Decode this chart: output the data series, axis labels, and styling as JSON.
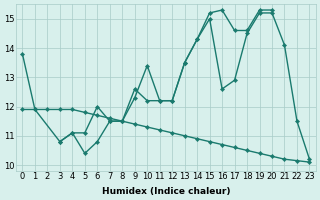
{
  "series": [
    {
      "x": [
        0,
        1,
        3,
        4,
        5,
        6,
        7,
        8,
        9,
        10,
        11,
        12,
        13,
        14,
        15,
        16,
        17,
        18,
        19,
        20,
        21,
        22,
        23
      ],
      "y": [
        13.8,
        11.9,
        10.8,
        11.1,
        10.4,
        10.8,
        11.5,
        11.5,
        12.6,
        12.2,
        12.2,
        12.2,
        13.5,
        14.3,
        15.0,
        12.6,
        12.9,
        14.5,
        15.2,
        15.2,
        14.1,
        11.5,
        10.2
      ]
    },
    {
      "x": [
        3,
        4,
        5,
        6,
        7,
        8,
        9,
        10,
        11,
        12,
        13,
        14,
        15,
        16,
        17,
        18,
        19,
        20
      ],
      "y": [
        10.8,
        11.1,
        11.1,
        12.0,
        11.5,
        11.5,
        12.3,
        13.4,
        12.2,
        12.2,
        13.5,
        14.3,
        15.2,
        15.3,
        14.6,
        14.6,
        15.3,
        15.3
      ]
    },
    {
      "x": [
        0,
        1,
        2,
        3,
        4,
        5,
        6,
        7,
        8,
        9,
        10,
        11,
        12,
        13,
        14,
        15,
        16,
        17,
        18,
        19,
        20,
        21,
        22,
        23
      ],
      "y": [
        11.9,
        11.9,
        11.9,
        11.9,
        11.9,
        11.8,
        11.7,
        11.6,
        11.5,
        11.4,
        11.3,
        11.2,
        11.1,
        11.0,
        10.9,
        10.8,
        10.7,
        10.6,
        10.5,
        10.4,
        10.3,
        10.2,
        10.15,
        10.1
      ]
    }
  ],
  "color": "#1a7a6e",
  "bg_color": "#d8f0ec",
  "grid_color": "#a8ccc8",
  "xlabel": "Humidex (Indice chaleur)",
  "xlim": [
    -0.5,
    23.5
  ],
  "ylim": [
    9.8,
    15.5
  ],
  "xticks": [
    0,
    1,
    2,
    3,
    4,
    5,
    6,
    7,
    8,
    9,
    10,
    11,
    12,
    13,
    14,
    15,
    16,
    17,
    18,
    19,
    20,
    21,
    22,
    23
  ],
  "yticks": [
    10,
    11,
    12,
    13,
    14,
    15
  ],
  "xlabel_fontsize": 6.5,
  "tick_fontsize": 6,
  "linewidth": 1.0,
  "markersize": 2.2
}
